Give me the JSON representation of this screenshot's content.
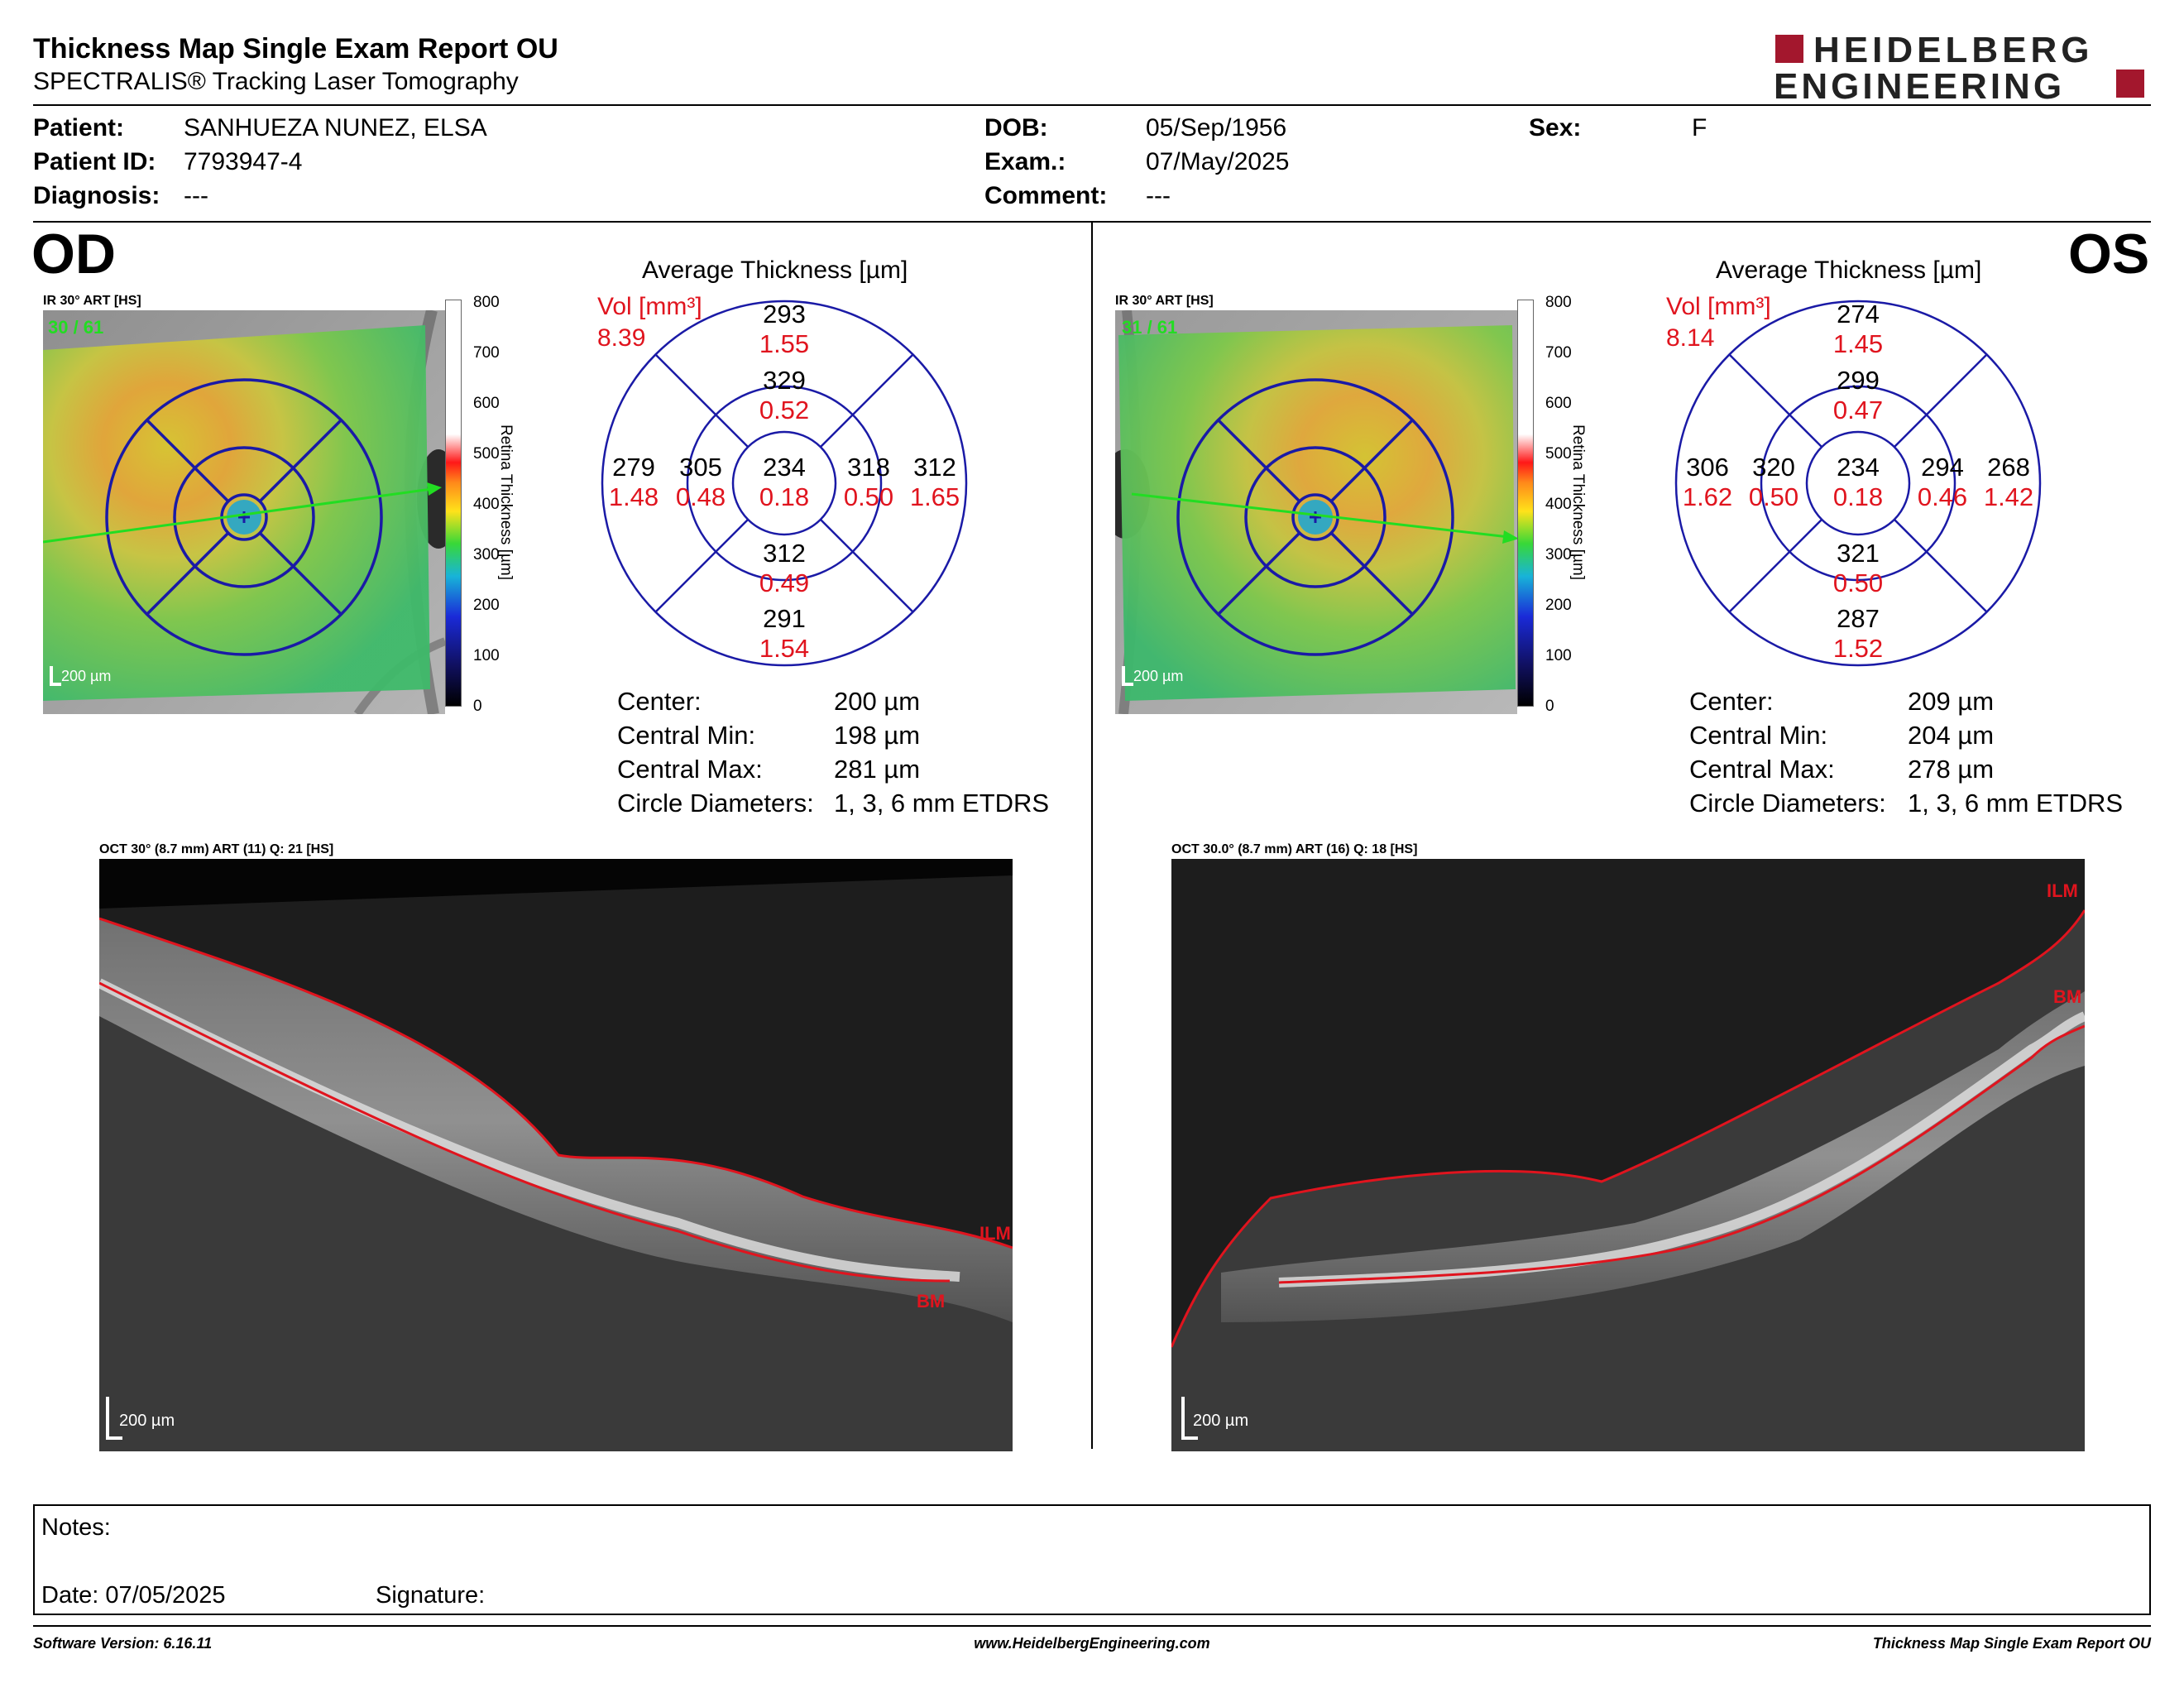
{
  "header": {
    "title": "Thickness Map Single Exam Report OU",
    "subtitle": "SPECTRALIS® Tracking Laser Tomography",
    "logo_line1": "HEIDELBERG",
    "logo_line2": "ENGINEERING"
  },
  "patient": {
    "patient_label": "Patient:",
    "patient_value": "SANHUEZA NUNEZ, ELSA",
    "id_label": "Patient ID:",
    "id_value": "7793947-4",
    "diagnosis_label": "Diagnosis:",
    "diagnosis_value": "---",
    "dob_label": "DOB:",
    "dob_value": "05/Sep/1956",
    "exam_label": "Exam.:",
    "exam_value": "07/May/2025",
    "comment_label": "Comment:",
    "comment_value": "---",
    "sex_label": "Sex:",
    "sex_value": "F"
  },
  "od": {
    "eye": "OD",
    "ir_label": "IR 30° ART [HS]",
    "frames": "30 / 61",
    "scale": "200 µm",
    "colorbar_ticks": [
      "800",
      "700",
      "600",
      "500",
      "400",
      "300",
      "200",
      "100",
      "0"
    ],
    "colorbar_title": "Retina Thickness [µm]",
    "avg_title": "Average Thickness [µm]",
    "vol_label": "Vol [mm³]",
    "vol_total": "8.39",
    "sectors": {
      "outer_sup": [
        "293",
        "1.55"
      ],
      "inner_sup": [
        "329",
        "0.52"
      ],
      "outer_left": [
        "279",
        "1.48"
      ],
      "inner_left": [
        "305",
        "0.48"
      ],
      "center": [
        "234",
        "0.18"
      ],
      "inner_right": [
        "318",
        "0.50"
      ],
      "outer_right": [
        "312",
        "1.65"
      ],
      "inner_inf": [
        "312",
        "0.49"
      ],
      "outer_inf": [
        "291",
        "1.54"
      ]
    },
    "stats": [
      {
        "label": "Center:",
        "value": "200 µm"
      },
      {
        "label": "Central Min:",
        "value": "198 µm"
      },
      {
        "label": "Central Max:",
        "value": "281 µm"
      },
      {
        "label": "Circle Diameters:",
        "value": "1, 3, 6 mm ETDRS"
      }
    ],
    "oct_label": "OCT 30° (8.7 mm) ART (11) Q: 21 [HS]",
    "oct_scale": "200 µm",
    "ilm": "ILM",
    "bm": "BM"
  },
  "os": {
    "eye": "OS",
    "ir_label": "IR 30° ART [HS]",
    "frames": "31 / 61",
    "scale": "200 µm",
    "colorbar_ticks": [
      "800",
      "700",
      "600",
      "500",
      "400",
      "300",
      "200",
      "100",
      "0"
    ],
    "colorbar_title": "Retina Thickness [µm]",
    "avg_title": "Average Thickness [µm]",
    "vol_label": "Vol [mm³]",
    "vol_total": "8.14",
    "sectors": {
      "outer_sup": [
        "274",
        "1.45"
      ],
      "inner_sup": [
        "299",
        "0.47"
      ],
      "outer_left": [
        "306",
        "1.62"
      ],
      "inner_left": [
        "320",
        "0.50"
      ],
      "center": [
        "234",
        "0.18"
      ],
      "inner_right": [
        "294",
        "0.46"
      ],
      "outer_right": [
        "268",
        "1.42"
      ],
      "inner_inf": [
        "321",
        "0.50"
      ],
      "outer_inf": [
        "287",
        "1.52"
      ]
    },
    "stats": [
      {
        "label": "Center:",
        "value": "209 µm"
      },
      {
        "label": "Central Min:",
        "value": "204 µm"
      },
      {
        "label": "Central Max:",
        "value": "278 µm"
      },
      {
        "label": "Circle Diameters:",
        "value": "1, 3, 6 mm ETDRS"
      }
    ],
    "oct_label": "OCT 30.0° (8.7 mm) ART (16) Q: 18 [HS]",
    "oct_scale": "200 µm",
    "ilm": "ILM",
    "bm": "BM"
  },
  "notes": {
    "notes_label": "Notes:",
    "date_label": "Date: 07/05/2025",
    "signature_label": "Signature:"
  },
  "footer": {
    "software": "Software Version: 6.16.11",
    "website": "www.HeidelbergEngineering.com",
    "report": "Thickness Map Single Exam Report OU"
  },
  "colors": {
    "accent_red": "#e0141e",
    "grid_blue": "#1a1aa6",
    "logo_red": "#a3172d",
    "fixation_green": "#22dd22"
  }
}
